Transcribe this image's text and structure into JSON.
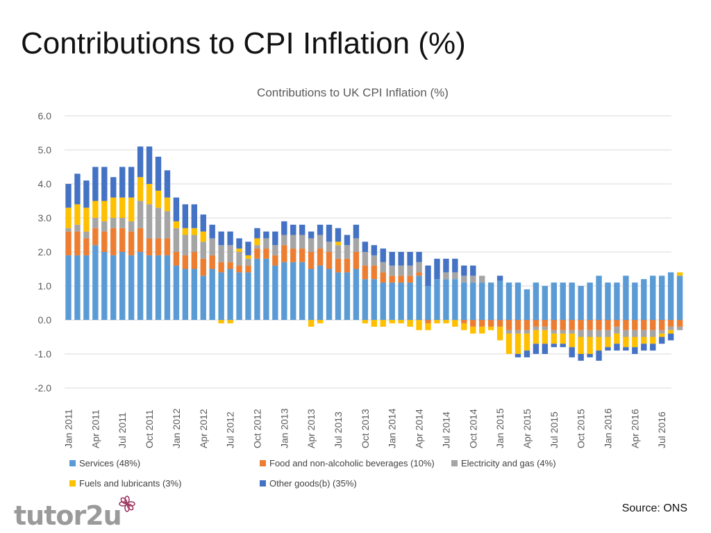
{
  "slide": {
    "title": "Contributions to CPI Inflation (%)",
    "source": "Source: ONS",
    "logo_text": "tutor2u"
  },
  "colors": {
    "services": "#5b9bd5",
    "food": "#ed7d31",
    "electricity": "#a5a5a5",
    "fuels": "#ffc000",
    "other": "#4472c4",
    "grid": "#d9d9d9",
    "axis_text": "#595959"
  },
  "chart_data": {
    "type": "bar",
    "stacked": true,
    "title": "Contributions to UK CPI Inflation (%)",
    "ylim": [
      -2.0,
      6.0
    ],
    "yticks": [
      "6.0",
      "5.0",
      "4.0",
      "3.0",
      "2.0",
      "1.0",
      "0.0",
      "-1.0",
      "-2.0"
    ],
    "ytick_values": [
      6,
      5,
      4,
      3,
      2,
      1,
      0,
      -1,
      -2
    ],
    "grid": true,
    "legend_position": "bottom",
    "xtick_labels": [
      {
        "index": 0,
        "label": "Jan 2011"
      },
      {
        "index": 3,
        "label": "Apr 2011"
      },
      {
        "index": 6,
        "label": "Jul 2011"
      },
      {
        "index": 9,
        "label": "Oct 2011"
      },
      {
        "index": 12,
        "label": "Jan 2012"
      },
      {
        "index": 15,
        "label": "Apr 2012"
      },
      {
        "index": 18,
        "label": "Jul 2012"
      },
      {
        "index": 21,
        "label": "Oct 2012"
      },
      {
        "index": 24,
        "label": "Jan 2013"
      },
      {
        "index": 27,
        "label": "Apr 2013"
      },
      {
        "index": 30,
        "label": "Jul 2013"
      },
      {
        "index": 33,
        "label": "Oct 2013"
      },
      {
        "index": 36,
        "label": "Jan 2014"
      },
      {
        "index": 39,
        "label": "Apr 2014"
      },
      {
        "index": 42,
        "label": "Jul 2014"
      },
      {
        "index": 45,
        "label": "Oct 2014"
      },
      {
        "index": 48,
        "label": "Jan 2015"
      },
      {
        "index": 51,
        "label": "Apr 2015"
      },
      {
        "index": 54,
        "label": "Jul 2015"
      },
      {
        "index": 57,
        "label": "Oct 2015"
      },
      {
        "index": 60,
        "label": "Jan 2016"
      },
      {
        "index": 63,
        "label": "Apr 2016"
      },
      {
        "index": 66,
        "label": "Jul 2016"
      }
    ],
    "series": [
      {
        "key": "services",
        "name": "Services (48%)",
        "values": [
          1.9,
          1.9,
          1.9,
          2.2,
          2.0,
          1.9,
          2.0,
          1.9,
          2.0,
          1.9,
          1.9,
          1.9,
          1.6,
          1.5,
          1.5,
          1.3,
          1.5,
          1.4,
          1.5,
          1.4,
          1.4,
          1.8,
          1.8,
          1.6,
          1.7,
          1.7,
          1.7,
          1.5,
          1.6,
          1.5,
          1.4,
          1.4,
          1.5,
          1.2,
          1.2,
          1.1,
          1.1,
          1.1,
          1.1,
          1.3,
          1.0,
          1.2,
          1.2,
          1.2,
          1.1,
          1.1,
          1.1,
          1.1,
          1.15,
          1.1,
          1.1,
          0.9,
          1.1,
          1.0,
          1.1,
          1.1,
          1.1,
          1.0,
          1.1,
          1.3,
          1.1,
          1.1,
          1.3,
          1.1,
          1.2,
          1.3,
          1.3,
          1.4,
          1.3
        ]
      },
      {
        "key": "food",
        "name": "Food and non-alcoholic beverages (10%)",
        "values": [
          0.7,
          0.7,
          0.5,
          0.5,
          0.6,
          0.8,
          0.7,
          0.7,
          0.7,
          0.5,
          0.5,
          0.5,
          0.4,
          0.4,
          0.5,
          0.5,
          0.4,
          0.3,
          0.2,
          0.2,
          0.2,
          0.3,
          0.3,
          0.3,
          0.5,
          0.4,
          0.4,
          0.5,
          0.5,
          0.5,
          0.4,
          0.4,
          0.5,
          0.4,
          0.4,
          0.3,
          0.2,
          0.2,
          0.2,
          0.1,
          -0.1,
          0.0,
          0.0,
          0.0,
          -0.1,
          -0.2,
          -0.2,
          -0.2,
          -0.2,
          -0.3,
          -0.3,
          -0.3,
          -0.2,
          -0.2,
          -0.3,
          -0.3,
          -0.3,
          -0.3,
          -0.3,
          -0.3,
          -0.3,
          -0.2,
          -0.3,
          -0.3,
          -0.3,
          -0.3,
          -0.3,
          -0.2,
          -0.2
        ]
      },
      {
        "key": "electricity",
        "name": "Electricity and gas (4%)",
        "values": [
          0.1,
          0.2,
          0.2,
          0.3,
          0.3,
          0.3,
          0.3,
          0.3,
          0.8,
          1.0,
          0.9,
          0.8,
          0.7,
          0.6,
          0.5,
          0.5,
          0.5,
          0.5,
          0.5,
          0.4,
          0.2,
          0.1,
          0.3,
          0.3,
          0.3,
          0.4,
          0.4,
          0.4,
          0.4,
          0.3,
          0.4,
          0.4,
          0.4,
          0.4,
          0.3,
          0.3,
          0.3,
          0.3,
          0.3,
          0.3,
          0.0,
          0.0,
          0.2,
          0.2,
          0.2,
          0.2,
          0.2,
          0.0,
          0.0,
          -0.1,
          -0.1,
          -0.1,
          -0.1,
          -0.1,
          -0.1,
          -0.1,
          -0.1,
          -0.2,
          -0.2,
          -0.2,
          -0.2,
          -0.2,
          -0.2,
          -0.2,
          -0.2,
          -0.2,
          -0.1,
          -0.1,
          -0.1
        ]
      },
      {
        "key": "fuels",
        "name": "Fuels and lubricants (3%)",
        "values": [
          0.6,
          0.6,
          0.7,
          0.5,
          0.6,
          0.6,
          0.6,
          0.7,
          0.7,
          0.6,
          0.5,
          0.4,
          0.2,
          0.2,
          0.2,
          0.3,
          0.0,
          -0.1,
          -0.1,
          0.1,
          0.1,
          0.2,
          0.0,
          0.0,
          0.0,
          0.0,
          0.0,
          -0.2,
          -0.1,
          0.0,
          0.1,
          0.0,
          0.0,
          -0.1,
          -0.2,
          -0.2,
          -0.1,
          -0.1,
          -0.2,
          -0.3,
          -0.2,
          -0.1,
          -0.1,
          -0.2,
          -0.2,
          -0.2,
          -0.2,
          -0.1,
          -0.4,
          -0.6,
          -0.6,
          -0.5,
          -0.4,
          -0.4,
          -0.3,
          -0.3,
          -0.4,
          -0.5,
          -0.5,
          -0.4,
          -0.3,
          -0.3,
          -0.3,
          -0.3,
          -0.2,
          -0.2,
          -0.1,
          -0.1,
          0.1
        ]
      },
      {
        "key": "other",
        "name": "Other goods(b) (35%)",
        "values": [
          0.7,
          0.9,
          0.8,
          1.0,
          1.0,
          0.6,
          0.9,
          0.9,
          0.9,
          1.1,
          1.0,
          0.8,
          0.7,
          0.7,
          0.7,
          0.5,
          0.4,
          0.4,
          0.4,
          0.3,
          0.4,
          0.3,
          0.2,
          0.4,
          0.4,
          0.3,
          0.3,
          0.2,
          0.3,
          0.5,
          0.4,
          0.3,
          0.4,
          0.3,
          0.3,
          0.4,
          0.4,
          0.4,
          0.4,
          0.3,
          0.6,
          0.6,
          0.4,
          0.4,
          0.3,
          0.3,
          0.0,
          0.0,
          0.15,
          0.0,
          -0.1,
          -0.2,
          -0.3,
          -0.3,
          -0.1,
          -0.1,
          -0.3,
          -0.2,
          -0.1,
          -0.3,
          -0.1,
          -0.2,
          -0.1,
          -0.2,
          -0.2,
          -0.2,
          -0.2,
          -0.2,
          0.0
        ]
      }
    ]
  }
}
